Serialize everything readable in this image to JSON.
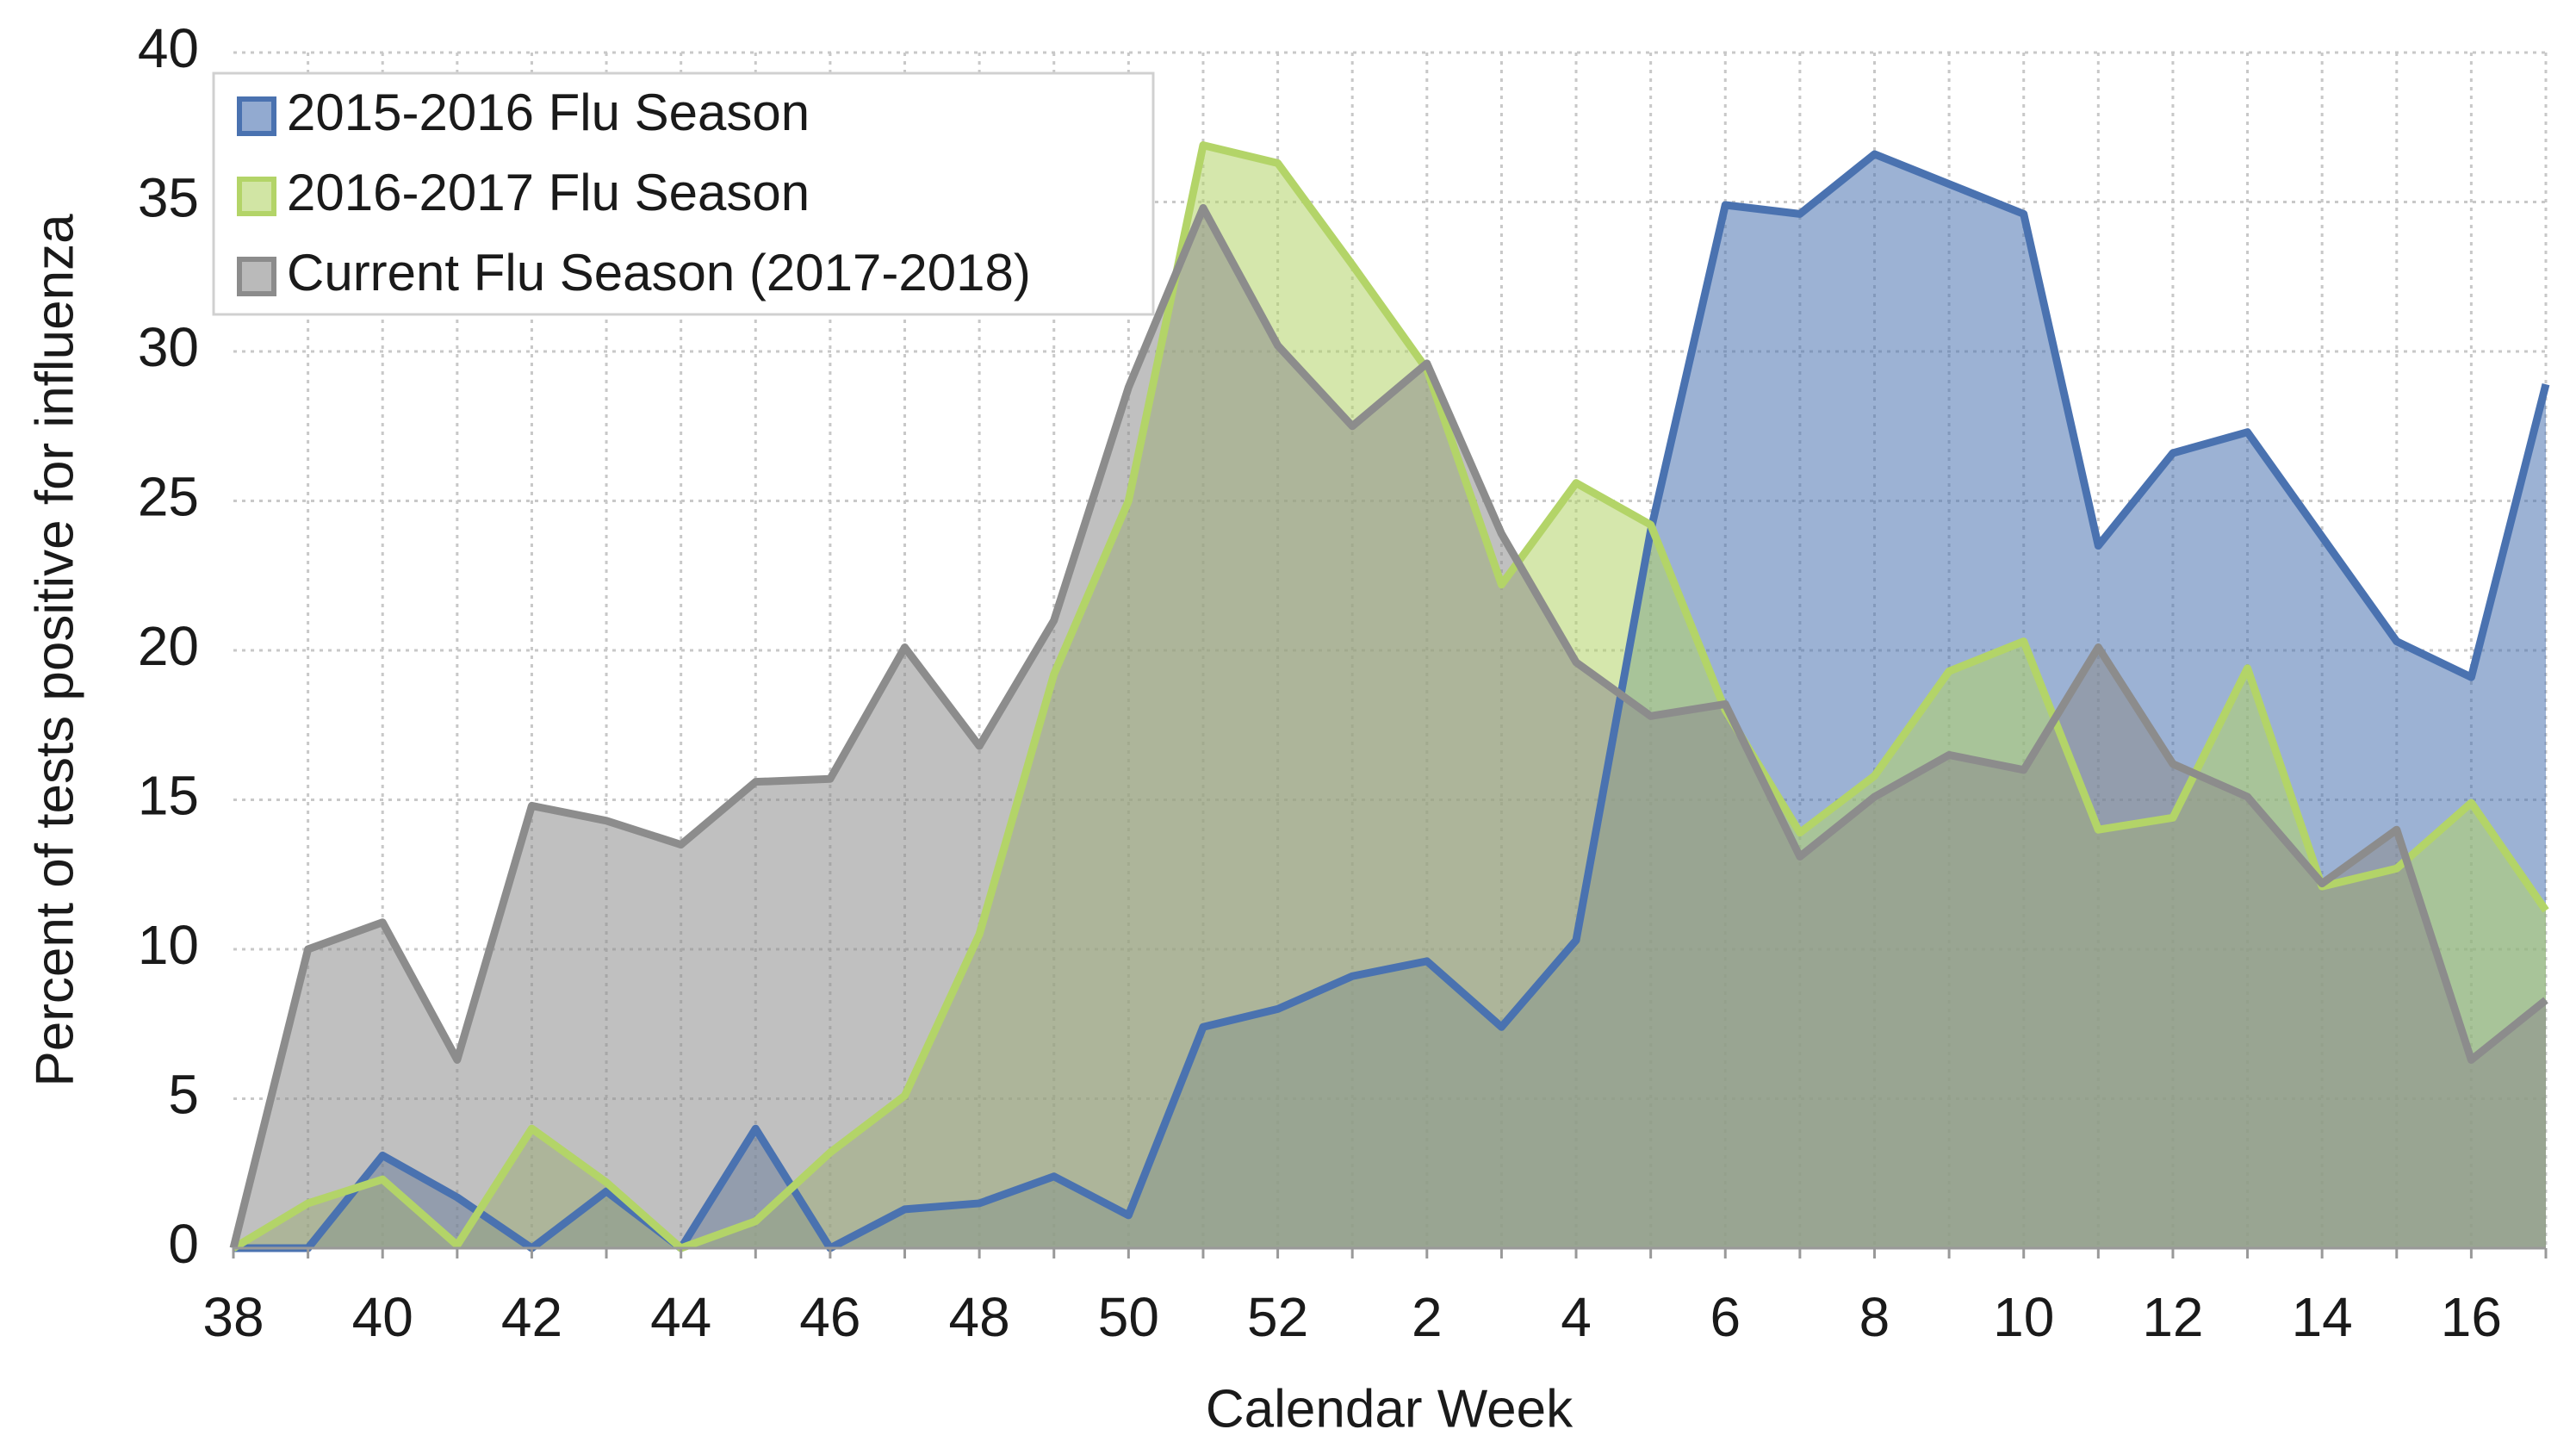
{
  "chart_data": {
    "type": "area",
    "x_label": "Calendar Week",
    "y_label": "Percent of tests positive for influenza",
    "categories": [
      "38",
      null,
      "40",
      null,
      "42",
      null,
      "44",
      null,
      "46",
      null,
      "48",
      null,
      "50",
      null,
      "52",
      null,
      "2",
      null,
      "4",
      null,
      "6",
      null,
      "8",
      null,
      "10",
      null,
      "12",
      null,
      "14",
      null,
      "16",
      null
    ],
    "series": [
      {
        "name": "2015-2016 Flu Season",
        "color": "#4a72b0",
        "values": [
          0,
          0,
          3.1,
          1.7,
          0,
          1.9,
          0,
          4.0,
          0,
          1.3,
          1.5,
          2.4,
          1.1,
          7.4,
          8.0,
          9.1,
          9.6,
          7.4,
          10.3,
          24.0,
          34.9,
          34.6,
          36.6,
          35.6,
          34.6,
          23.5,
          26.6,
          27.3,
          23.8,
          20.3,
          19.1,
          28.9
        ]
      },
      {
        "name": "2016-2017 Flu Season",
        "color": "#b3d468",
        "values": [
          0,
          1.5,
          2.3,
          0.1,
          4.0,
          2.2,
          0,
          0.9,
          3.2,
          5.1,
          10.5,
          19.2,
          25.0,
          36.9,
          36.3,
          32.9,
          29.4,
          22.2,
          25.6,
          24.2,
          18.0,
          13.9,
          15.8,
          19.3,
          20.3,
          14.0,
          14.4,
          19.4,
          12.1,
          12.7,
          14.9,
          11.3
        ]
      },
      {
        "name": "Current Flu Season (2017-2018)",
        "color": "#8c8c8c",
        "values": [
          0,
          10.0,
          10.9,
          6.3,
          14.8,
          14.3,
          13.5,
          15.6,
          15.7,
          20.1,
          16.8,
          21.0,
          28.8,
          34.8,
          30.2,
          27.5,
          29.6,
          23.9,
          19.6,
          17.8,
          18.2,
          13.1,
          15.1,
          16.5,
          16.0,
          20.1,
          16.2,
          15.1,
          12.2,
          14.0,
          6.3,
          8.3
        ]
      }
    ],
    "ylim": [
      0,
      40
    ],
    "yticks": [
      0,
      5,
      10,
      15,
      20,
      25,
      30,
      35,
      40
    ],
    "grid": true,
    "legend": "top-left"
  }
}
